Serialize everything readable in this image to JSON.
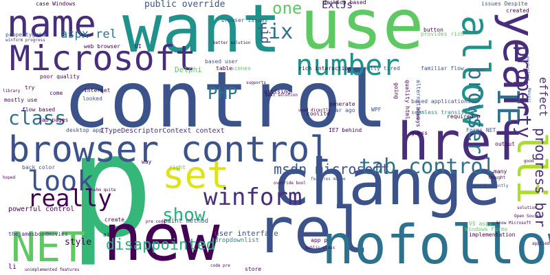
{
  "palette": {
    "c0": "#440154",
    "c1": "#472d7b",
    "c2": "#3b528b",
    "c3": "#2c728e",
    "c4": "#21918c",
    "c5": "#28ae80",
    "c6": "#5ec962",
    "c7": "#addc30",
    "c8": "#dde318"
  },
  "words": [
    {
      "text": "control",
      "weight": 100,
      "color": "#3b528b"
    },
    {
      "text": "p",
      "weight": 98,
      "color": "#35b779"
    },
    {
      "text": "want",
      "weight": 70,
      "color": "#21918c"
    },
    {
      "text": "use",
      "weight": 70,
      "color": "#5ec962"
    },
    {
      "text": "change",
      "weight": 68,
      "color": "#3b528b"
    },
    {
      "text": "new",
      "weight": 66,
      "color": "#440154"
    },
    {
      "text": "rel",
      "weight": 62,
      "color": "#3b528b"
    },
    {
      "text": "nofollow",
      "weight": 62,
      "color": "#2c728e"
    },
    {
      "text": "href",
      "weight": 60,
      "color": "#472d7b"
    },
    {
      "text": "browser control",
      "weight": 52,
      "color": "#3b528b"
    },
    {
      "text": "Microsoft",
      "weight": 50,
      "color": "#472d7b"
    },
    {
      "text": "NET",
      "weight": 48,
      "color": "#5ec962"
    },
    {
      "text": "name",
      "weight": 46,
      "color": "#472d7b"
    },
    {
      "text": "year",
      "weight": 44,
      "color": "#472d7b"
    },
    {
      "text": "allow",
      "weight": 42,
      "color": "#21918c"
    },
    {
      "text": "number",
      "weight": 38,
      "color": "#21918c"
    },
    {
      "text": "set",
      "weight": 38,
      "color": "#dde318"
    },
    {
      "text": "look",
      "weight": 34,
      "color": "#3b528b"
    },
    {
      "text": "IE",
      "weight": 34,
      "color": "#2c728e"
    },
    {
      "text": "lli",
      "weight": 34,
      "color": "#addc30"
    },
    {
      "text": "winform",
      "weight": 32,
      "color": "#472d7b"
    },
    {
      "text": "tab control",
      "weight": 30,
      "color": "#2c728e"
    },
    {
      "text": "really",
      "weight": 28,
      "color": "#440154"
    },
    {
      "text": "browser",
      "weight": 26,
      "color": "#2c728e"
    },
    {
      "text": "property",
      "weight": 26,
      "color": "#472d7b"
    },
    {
      "text": "show",
      "weight": 22,
      "color": "#28ae80"
    },
    {
      "text": "class",
      "weight": 22,
      "color": "#2c728e"
    },
    {
      "text": "fix",
      "weight": 22,
      "color": "#2c728e"
    },
    {
      "text": "one",
      "weight": 20,
      "color": "#5ec962"
    },
    {
      "text": "disappointed",
      "weight": 18,
      "color": "#28ae80"
    },
    {
      "text": "PHP",
      "weight": 18,
      "color": "#2c728e"
    },
    {
      "text": "msdn microsoft",
      "weight": 18,
      "color": "#3b528b"
    },
    {
      "text": "progress bar",
      "weight": 16,
      "color": "#472d7b"
    },
    {
      "text": "effect",
      "weight": 14,
      "color": "#472d7b"
    },
    {
      "text": "aspx rel",
      "weight": 14,
      "color": "#2c728e"
    },
    {
      "text": "ExtJs",
      "weight": 14,
      "color": "#472d7b"
    },
    {
      "text": "id",
      "weight": 14,
      "color": "#3b528b"
    },
    {
      "text": "style",
      "weight": 12,
      "color": "#440154"
    },
    {
      "text": "public override",
      "weight": 12,
      "color": "#3b528b"
    },
    {
      "text": "user interface",
      "weight": 10,
      "color": "#3b528b"
    },
    {
      "text": "Delphi",
      "weight": 10,
      "color": "#5ec962"
    },
    {
      "text": "ITypeDescriptorContext context",
      "weight": 9,
      "color": "#472d7b"
    },
    {
      "text": "powerful control",
      "weight": 9,
      "color": "#440154"
    },
    {
      "text": "paint method",
      "weight": 9,
      "color": "#3b528b"
    },
    {
      "text": "dropdownlist",
      "weight": 9,
      "color": "#21918c"
    },
    {
      "text": "Windows Forms",
      "weight": 8,
      "color": "#5ec962"
    },
    {
      "text": "web browser",
      "weight": 8,
      "color": "#440154"
    },
    {
      "text": "rich interaction",
      "weight": 8,
      "color": "#440154"
    },
    {
      "text": "really tired",
      "weight": 8,
      "color": "#3b528b"
    },
    {
      "text": "familiar flow",
      "weight": 8,
      "color": "#3b528b"
    },
    {
      "text": "flow based",
      "weight": 8,
      "color": "#440154"
    },
    {
      "text": "tab pages",
      "weight": 8,
      "color": "#440154"
    },
    {
      "text": "desktop app",
      "weight": 8,
      "color": "#3b528b"
    },
    {
      "text": "back color",
      "weight": 8,
      "color": "#3b528b"
    },
    {
      "text": "thejamesbondmovies",
      "weight": 8,
      "color": "#472d7b"
    },
    {
      "text": "mostly use",
      "weight": 8,
      "color": "#440154"
    },
    {
      "text": "poor quality",
      "weight": 8,
      "color": "#440154"
    },
    {
      "text": "based applications",
      "weight": 8,
      "color": "#3b528b"
    },
    {
      "text": "seamless transition",
      "weight": 8,
      "color": "#21918c"
    },
    {
      "text": "IE7 behind",
      "weight": 8,
      "color": "#440154"
    },
    {
      "text": "desktop based",
      "weight": 8,
      "color": "#440154"
    },
    {
      "text": "provides rich",
      "weight": 8,
      "color": "#5ec962"
    },
    {
      "text": "issues Despite",
      "weight": 8,
      "color": "#3b528b"
    },
    {
      "text": "created",
      "weight": 8,
      "color": "#440154"
    },
    {
      "text": "button",
      "weight": 8,
      "color": "#440154"
    },
    {
      "text": "WPF",
      "weight": 8,
      "color": "#3b528b"
    },
    {
      "text": "coolite",
      "weight": 8,
      "color": "#440154"
    },
    {
      "text": "generate",
      "weight": 8,
      "color": "#440154"
    },
    {
      "text": "year ago",
      "weight": 8,
      "color": "#3b528b"
    },
    {
      "text": "utlising",
      "weight": 8,
      "color": "#440154"
    },
    {
      "text": "looked",
      "weight": 8,
      "color": "#3b528b"
    },
    {
      "text": "internet",
      "weight": 8,
      "color": "#440154"
    },
    {
      "text": "come",
      "weight": 8,
      "color": "#440154"
    },
    {
      "text": "try",
      "weight": 8,
      "color": "#440154"
    },
    {
      "text": "propertygrid",
      "weight": 8,
      "color": "#3b528b"
    },
    {
      "text": "case Windows",
      "weight": 8,
      "color": "#440154"
    },
    {
      "text": "winform progress",
      "weight": 6,
      "color": "#472d7b"
    },
    {
      "text": "based user",
      "weight": 8,
      "color": "#3b528b"
    },
    {
      "text": "table",
      "weight": 8,
      "color": "#440154"
    },
    {
      "text": "scenes",
      "weight": 8,
      "color": "#5ec962"
    },
    {
      "text": "UI",
      "weight": 8,
      "color": "#440154"
    },
    {
      "text": "browser issues",
      "weight": 8,
      "color": "#3b528b"
    },
    {
      "text": "supports",
      "weight": 6,
      "color": "#440154"
    },
    {
      "text": "better solution",
      "weight": 6,
      "color": "#440154"
    },
    {
      "text": "best solution",
      "weight": 6,
      "color": "#440154"
    },
    {
      "text": "used directly",
      "weight": 6,
      "color": "#440154"
    },
    {
      "text": "features maybe",
      "weight": 6,
      "color": "#3b528b"
    },
    {
      "text": "library",
      "weight": 6,
      "color": "#440154"
    },
    {
      "text": "alternatives",
      "weight": 8,
      "color": "#3b528b"
    },
    {
      "text": "always",
      "weight": 8,
      "color": "#440154"
    },
    {
      "text": "quality html",
      "weight": 8,
      "color": "#440154"
    },
    {
      "text": "going",
      "weight": 8,
      "color": "#440154"
    },
    {
      "text": "required p",
      "weight": 8,
      "color": "#440154"
    },
    {
      "text": "guess",
      "weight": 8,
      "color": "#440154"
    },
    {
      "text": "Forms NET",
      "weight": 8,
      "color": "#3b528b"
    },
    {
      "text": "output",
      "weight": 8,
      "color": "#440154"
    },
    {
      "text": "many",
      "weight": 8,
      "color": "#440154"
    },
    {
      "text": "way",
      "weight": 8,
      "color": "#440154"
    },
    {
      "text": "right",
      "weight": 8,
      "color": "#5ec962"
    },
    {
      "text": "create",
      "weight": 8,
      "color": "#440154"
    },
    {
      "text": "aim",
      "weight": 8,
      "color": "#440154"
    },
    {
      "text": "app p",
      "weight": 8,
      "color": "#440154"
    },
    {
      "text": "store",
      "weight": 8,
      "color": "#440154"
    },
    {
      "text": "VS aspx",
      "weight": 8,
      "color": "#5ec962"
    },
    {
      "text": "implementation",
      "weight": 8,
      "color": "#440154"
    },
    {
      "text": "unimplemented features",
      "weight": 6,
      "color": "#440154"
    },
    {
      "text": "public class",
      "weight": 6,
      "color": "#440154"
    },
    {
      "text": "code pre",
      "weight": 6,
      "color": "#440154"
    },
    {
      "text": "pre code",
      "weight": 6,
      "color": "#440154"
    },
    {
      "text": "override bool",
      "weight": 6,
      "color": "#440154"
    },
    {
      "text": "Open Source",
      "weight": 6,
      "color": "#440154"
    },
    {
      "text": "improved recently",
      "weight": 6,
      "color": "#3b528b"
    },
    {
      "text": "know Microsoft",
      "weight": 6,
      "color": "#440154"
    },
    {
      "text": "uhm quite",
      "weight": 6,
      "color": "#440154"
    },
    {
      "text": "hoped",
      "weight": 6,
      "color": "#440154"
    },
    {
      "text": "li",
      "weight": 8,
      "color": "#440154"
    },
    {
      "text": "Mosaic",
      "weight": 6,
      "color": "#3b528b"
    },
    {
      "text": "equivalent",
      "weight": 6,
      "color": "#472d7b"
    },
    {
      "text": "thought",
      "weight": 6,
      "color": "#440154"
    },
    {
      "text": "good",
      "weight": 6,
      "color": "#440154"
    },
    {
      "text": "solution",
      "weight": 6,
      "color": "#440154"
    },
    {
      "text": "applied",
      "weight": 6,
      "color": "#440154"
    }
  ]
}
